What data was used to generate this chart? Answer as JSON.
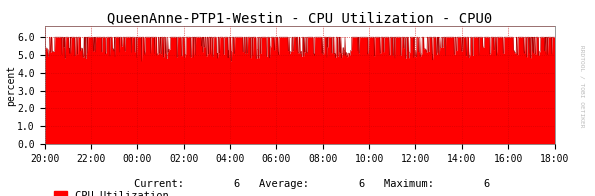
{
  "title": "QueenAnne-PTP1-Westin - CPU Utilization - CPU0",
  "ylabel": "percent",
  "background_color": "#ffffff",
  "plot_bg_color": "#ffffff",
  "fill_color": "#ff0000",
  "line_color": "#aa0000",
  "grid_color": "#cc0000",
  "ylim": [
    0.0,
    6.6
  ],
  "yticks": [
    0.0,
    1.0,
    2.0,
    3.0,
    4.0,
    5.0,
    6.0
  ],
  "xtick_labels": [
    "20:00",
    "22:00",
    "00:00",
    "02:00",
    "04:00",
    "06:00",
    "08:00",
    "10:00",
    "12:00",
    "14:00",
    "16:00",
    "18:00"
  ],
  "legend_label": "CPU Utilization",
  "legend_current": "6",
  "legend_average": "6",
  "legend_maximum": "6",
  "watermark": "RRDTOOL / TOBI OETIKER",
  "title_fontsize": 10,
  "axis_fontsize": 7,
  "legend_fontsize": 7.5,
  "base_value": 6.0,
  "num_points": 1500
}
